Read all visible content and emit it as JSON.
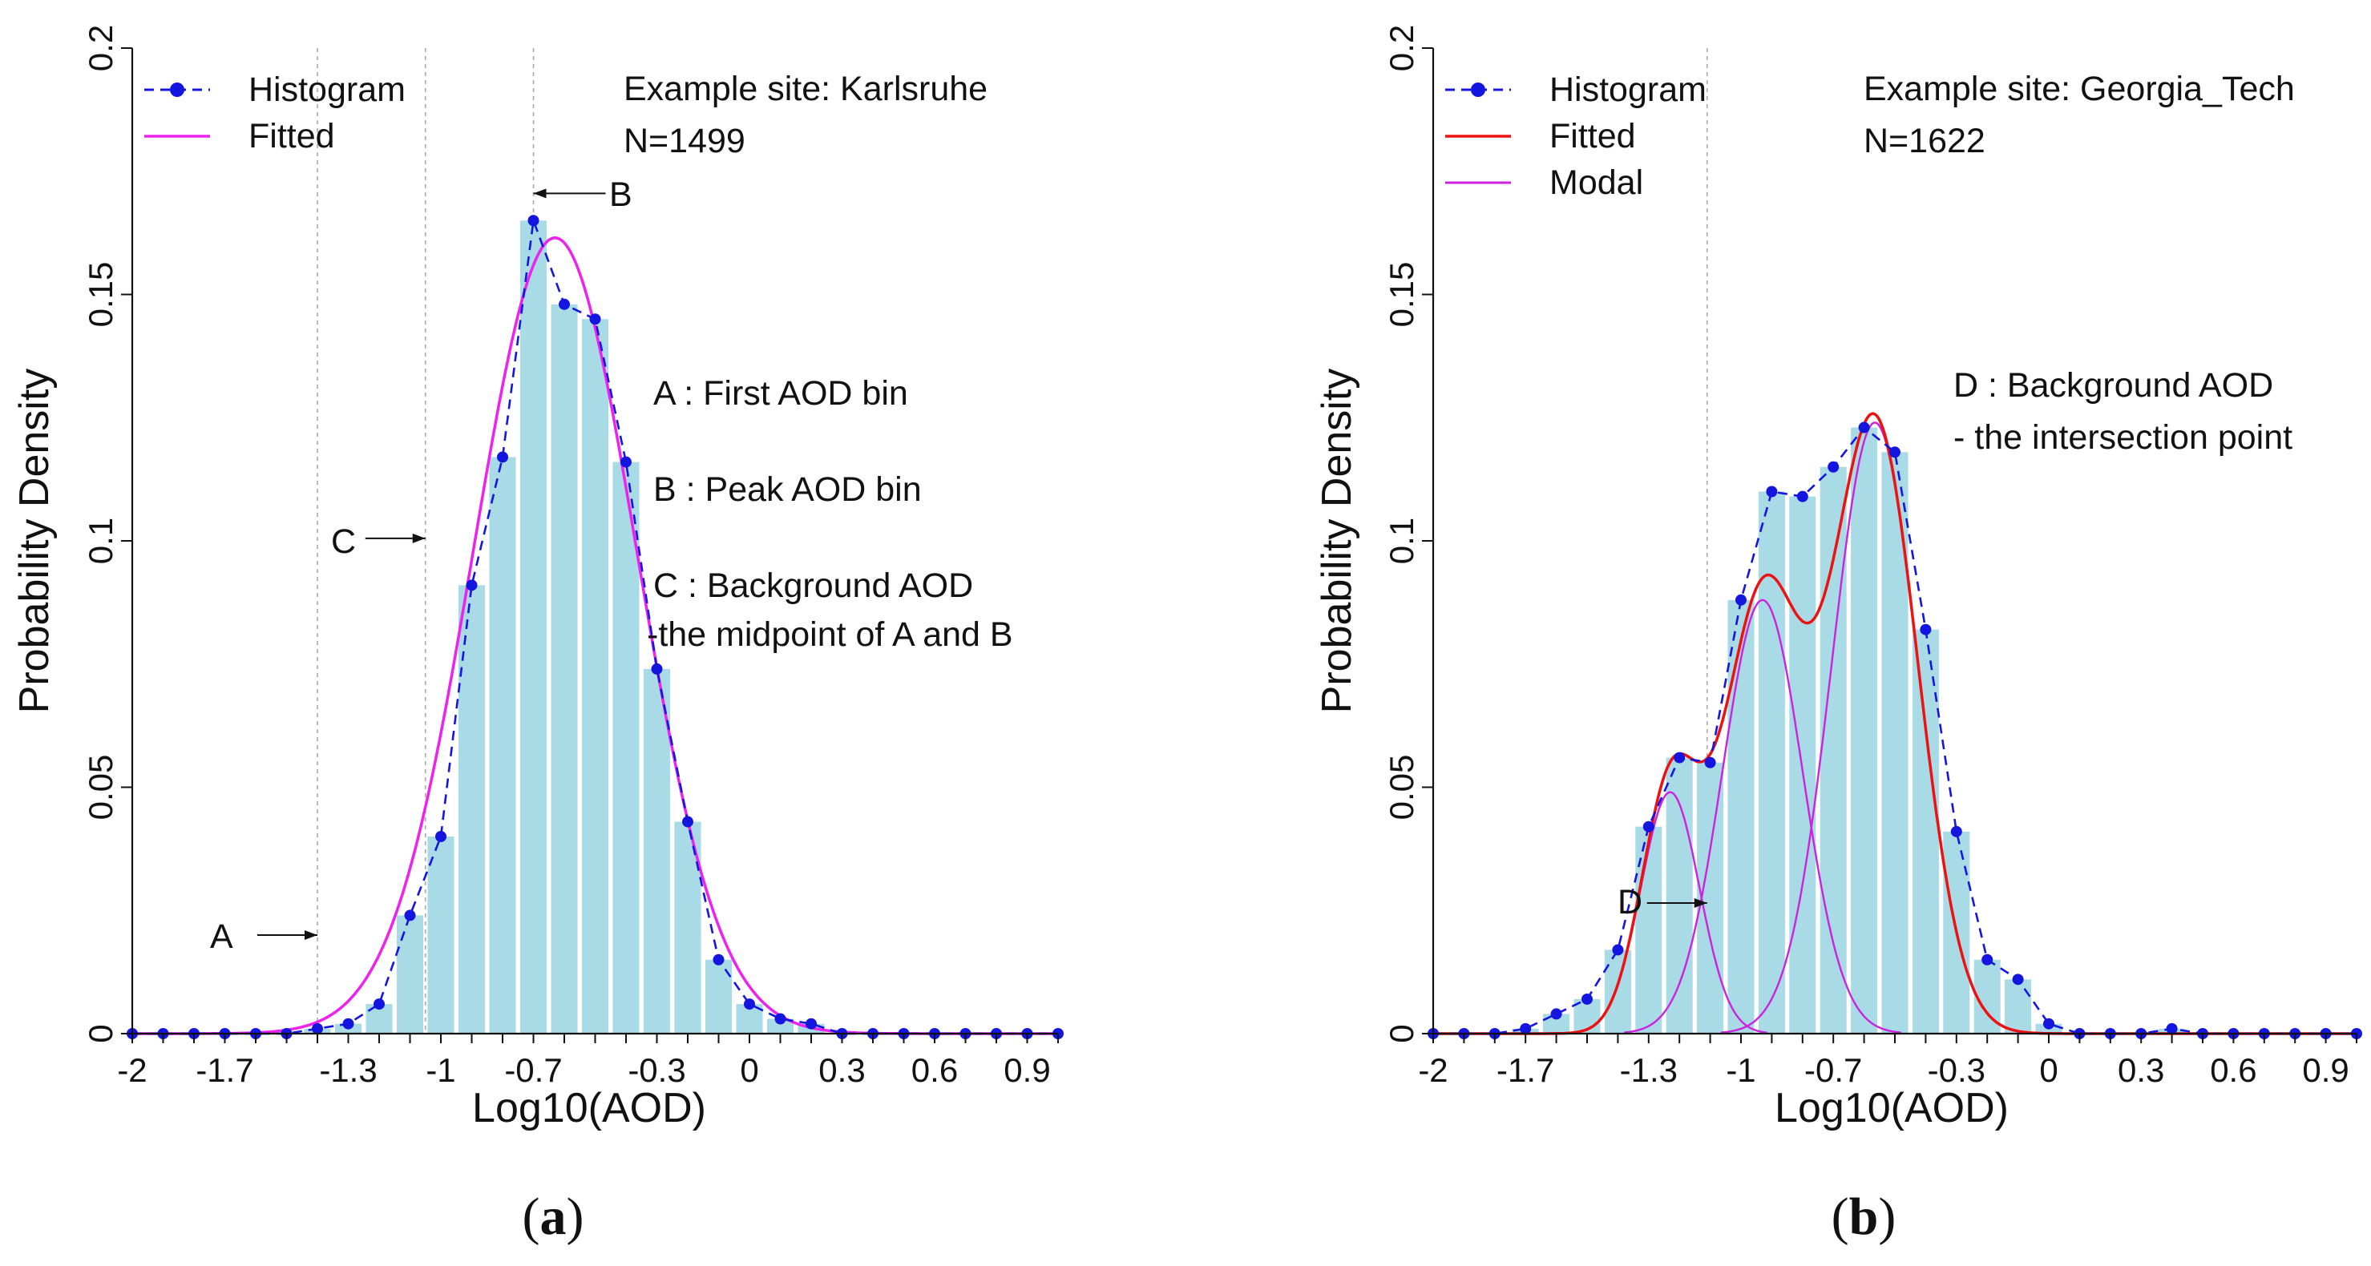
{
  "chart_data": [
    {
      "panel_label_open": "(",
      "panel_label_letter": "a",
      "panel_label_close": ")",
      "type": "bar",
      "overlays": [
        "line",
        "line"
      ],
      "xlabel": "Log10(AOD)",
      "ylabel": "Probability Density",
      "xlim": [
        -2,
        1.0
      ],
      "ylim": [
        0,
        0.2
      ],
      "x_tick_labels": [
        "-2",
        "-1.7",
        "-1.3",
        "-1",
        "-0.7",
        "-0.3",
        "0",
        "0.3",
        "0.6",
        "0.9"
      ],
      "x_tick_values": [
        -2,
        -1.7,
        -1.3,
        -1,
        -0.7,
        -0.3,
        0,
        0.3,
        0.6,
        0.9
      ],
      "y_ticks": [
        0,
        0.05,
        0.1,
        0.15,
        0.2
      ],
      "y_tick_labels": [
        "0",
        "0.05",
        "0.1",
        "0.15",
        "0.2"
      ],
      "bin_centers": [
        -2.0,
        -1.9,
        -1.8,
        -1.7,
        -1.6,
        -1.5,
        -1.4,
        -1.3,
        -1.2,
        -1.1,
        -1.0,
        -0.9,
        -0.8,
        -0.7,
        -0.6,
        -0.5,
        -0.4,
        -0.3,
        -0.2,
        -0.1,
        0.0,
        0.1,
        0.2,
        0.3,
        0.4,
        0.5,
        0.6,
        0.7,
        0.8,
        0.9,
        1.0
      ],
      "histogram": [
        0,
        0,
        0,
        0,
        0,
        0,
        0.001,
        0.002,
        0.006,
        0.024,
        0.04,
        0.091,
        0.117,
        0.165,
        0.148,
        0.145,
        0.116,
        0.074,
        0.043,
        0.015,
        0.006,
        0.003,
        0.002,
        0,
        0,
        0,
        0,
        0,
        0,
        0,
        0
      ],
      "fitted": {
        "type": "gaussian",
        "mean": -0.63,
        "sd": 0.265,
        "peak": 0.1615
      },
      "series": [
        {
          "name": "Histogram",
          "color": "#1515e0",
          "style": "dashed-with-points"
        },
        {
          "name": "Fitted",
          "color": "#ee22ee"
        }
      ],
      "vlines": [
        -1.4,
        -1.05,
        -0.7
      ],
      "annotations": {
        "site": "Example site: Karlsruhe",
        "n": "N=1499",
        "marker_a": "A",
        "marker_b": "B",
        "marker_c": "C",
        "desc_a": "A : First AOD bin",
        "desc_b": "B : Peak AOD bin",
        "desc_c1": "C : Background AOD",
        "desc_c2": "-the midpoint of A and B"
      },
      "arrows": [
        {
          "label": "A",
          "to_x": -1.4,
          "to_y": 0.02
        },
        {
          "label": "B",
          "to_x": -0.7,
          "to_y": 0.1705
        },
        {
          "label": "C",
          "to_x": -1.05,
          "to_y": 0.1005
        }
      ]
    },
    {
      "panel_label_open": "(",
      "panel_label_letter": "b",
      "panel_label_close": ")",
      "type": "bar",
      "overlays": [
        "line",
        "line",
        "line"
      ],
      "xlabel": "Log10(AOD)",
      "ylabel": "Probability Density",
      "xlim": [
        -2,
        1.0
      ],
      "ylim": [
        0,
        0.2
      ],
      "x_tick_labels": [
        "-2",
        "-1.7",
        "-1.3",
        "-1",
        "-0.7",
        "-0.3",
        "0",
        "0.3",
        "0.6",
        "0.9"
      ],
      "x_tick_values": [
        -2,
        -1.7,
        -1.3,
        -1,
        -0.7,
        -0.3,
        0,
        0.3,
        0.6,
        0.9
      ],
      "y_ticks": [
        0,
        0.05,
        0.1,
        0.15,
        0.2
      ],
      "y_tick_labels": [
        "0",
        "0.05",
        "0.1",
        "0.15",
        "0.2"
      ],
      "bin_centers": [
        -2.0,
        -1.9,
        -1.8,
        -1.7,
        -1.6,
        -1.5,
        -1.4,
        -1.3,
        -1.2,
        -1.1,
        -1.0,
        -0.9,
        -0.8,
        -0.7,
        -0.6,
        -0.5,
        -0.4,
        -0.3,
        -0.2,
        -0.1,
        0.0,
        0.1,
        0.2,
        0.3,
        0.4,
        0.5,
        0.6,
        0.7,
        0.8,
        0.9,
        1.0
      ],
      "histogram": [
        0,
        0,
        0,
        0.001,
        0.004,
        0.007,
        0.017,
        0.042,
        0.056,
        0.055,
        0.088,
        0.11,
        0.109,
        0.115,
        0.123,
        0.118,
        0.082,
        0.041,
        0.015,
        0.011,
        0.002,
        0,
        0,
        0,
        0.001,
        0,
        0,
        0,
        0,
        0,
        0
      ],
      "modal_components": [
        {
          "mean": -1.23,
          "sd": 0.095,
          "peak": 0.049
        },
        {
          "mean": -0.93,
          "sd": 0.13,
          "peak": 0.088
        },
        {
          "mean": -0.565,
          "sd": 0.14,
          "peak": 0.124
        }
      ],
      "series": [
        {
          "name": "Histogram",
          "color": "#1515e0",
          "style": "dashed-with-points"
        },
        {
          "name": "Fitted",
          "color": "#ee1111"
        },
        {
          "name": "Modal",
          "color": "#cc22dd"
        }
      ],
      "vlines": [
        -1.11
      ],
      "annotations": {
        "site": "Example site: Georgia_Tech",
        "n": "N=1622",
        "marker_d": "D",
        "desc_d1": "D : Background AOD",
        "desc_d2": "- the intersection point"
      },
      "arrows": [
        {
          "label": "D",
          "to_x": -1.11,
          "to_y": 0.0265
        }
      ]
    }
  ]
}
